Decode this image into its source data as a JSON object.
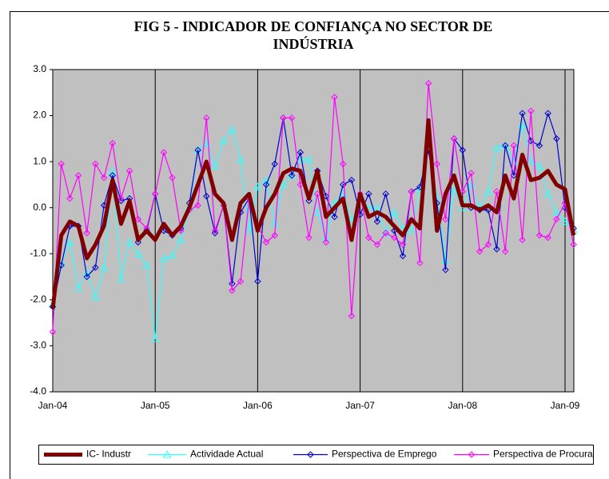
{
  "chart_data": {
    "type": "line",
    "title": "FIG 5 - INDICADOR DE CONFIANÇA NO SECTOR DE INDÚSTRIA",
    "categories": [
      "Jan-04",
      null,
      null,
      null,
      null,
      null,
      null,
      null,
      null,
      null,
      null,
      null,
      "Jan-05",
      null,
      null,
      null,
      null,
      null,
      null,
      null,
      null,
      null,
      null,
      null,
      "Jan-06",
      null,
      null,
      null,
      null,
      null,
      null,
      null,
      null,
      null,
      null,
      null,
      "Jan-07",
      null,
      null,
      null,
      null,
      null,
      null,
      null,
      null,
      null,
      null,
      null,
      "Jan-08",
      null,
      null,
      null,
      null,
      null,
      null,
      null,
      null,
      null,
      null,
      null,
      "Jan-09",
      null
    ],
    "ylim": [
      -4,
      3
    ],
    "yticks": [
      {
        "value": 3,
        "label": "3.0"
      },
      {
        "value": 2,
        "label": "2.0"
      },
      {
        "value": 1,
        "label": "1.0"
      },
      {
        "value": 0,
        "label": "0.0"
      },
      {
        "value": -1,
        "label": "-1.0"
      },
      {
        "value": -2,
        "label": "-2.0"
      },
      {
        "value": -3,
        "label": "-3.0"
      },
      {
        "value": -4,
        "label": "-4.0"
      }
    ],
    "plot_background": "#c0c0c0",
    "legend": "bottom",
    "series": [
      {
        "name": "IC- Industr",
        "color": "#800000",
        "line_width": 5,
        "marker": "none",
        "values": [
          -2.2,
          -0.6,
          -0.3,
          -0.4,
          -1.1,
          -0.8,
          -0.4,
          0.6,
          -0.35,
          0.15,
          -0.7,
          -0.5,
          -0.7,
          -0.35,
          -0.6,
          -0.4,
          0.0,
          0.5,
          1.0,
          0.3,
          0.1,
          -0.7,
          0.1,
          0.3,
          -0.5,
          0.0,
          0.3,
          0.75,
          0.85,
          0.8,
          0.2,
          0.8,
          -0.2,
          0.0,
          0.2,
          -0.7,
          0.3,
          -0.2,
          -0.1,
          -0.2,
          -0.4,
          -0.6,
          -0.25,
          -0.45,
          1.9,
          -0.5,
          0.3,
          0.7,
          0.05,
          0.05,
          -0.05,
          0.05,
          -0.1,
          0.7,
          0.2,
          1.15,
          0.6,
          0.65,
          0.8,
          0.5,
          0.4,
          -0.6
        ]
      },
      {
        "name": "Actividade Actual",
        "color": "#33ffff",
        "line_width": 1.2,
        "marker": "triangle",
        "values": [
          -2.1,
          -1.2,
          -0.75,
          -1.75,
          -1.4,
          -1.95,
          -1.3,
          0.8,
          -1.55,
          -0.75,
          -1.0,
          -1.25,
          -2.85,
          -1.1,
          -1.05,
          -0.7,
          0.0,
          1.25,
          1.4,
          0.9,
          1.45,
          1.7,
          1.05,
          -0.5,
          0.45,
          0.6,
          -0.35,
          0.5,
          0.7,
          1.05,
          1.05,
          -0.1,
          -0.65,
          0.1,
          0.3,
          -0.3,
          0.2,
          0.0,
          0.0,
          -0.55,
          -0.1,
          -0.45,
          -0.5,
          0.4,
          1.55,
          0.2,
          -1.15,
          0.4,
          0.0,
          0.5,
          0.0,
          0.35,
          1.3,
          1.35,
          1.0,
          1.8,
          1.0,
          0.9,
          0.3,
          -0.1,
          -0.3,
          -0.5
        ]
      },
      {
        "name": "Perspectiva de Emprego",
        "color": "#0000cc",
        "line_width": 1.2,
        "marker": "diamond",
        "values": [
          -2.15,
          -1.25,
          -0.4,
          -0.4,
          -1.5,
          -1.3,
          0.05,
          0.7,
          0.15,
          0.2,
          -0.75,
          -0.5,
          0.3,
          -0.5,
          -0.6,
          -0.45,
          0.1,
          1.25,
          0.25,
          -0.55,
          0.05,
          -1.65,
          -0.1,
          0.2,
          -1.6,
          0.5,
          0.95,
          1.95,
          0.7,
          1.2,
          0.15,
          0.8,
          0.25,
          -0.2,
          0.5,
          0.6,
          -0.15,
          0.3,
          -0.3,
          0.3,
          -0.5,
          -1.05,
          0.35,
          0.45,
          1.25,
          0.1,
          -1.35,
          1.5,
          1.25,
          0.0,
          -0.05,
          -0.05,
          -0.9,
          1.35,
          0.7,
          2.05,
          1.45,
          1.35,
          2.05,
          1.5,
          0.0,
          -0.45
        ]
      },
      {
        "name": "Perspectiva de Procura",
        "color": "#ff00ff",
        "line_width": 1.2,
        "marker": "diamond",
        "values": [
          -2.7,
          0.95,
          0.2,
          0.7,
          -0.55,
          0.95,
          0.65,
          1.4,
          0.2,
          0.8,
          -0.25,
          -0.45,
          0.3,
          1.2,
          0.65,
          -0.5,
          -0.05,
          0.05,
          1.95,
          -0.5,
          0.05,
          -1.8,
          -1.6,
          0.2,
          -0.4,
          -0.75,
          -0.6,
          1.95,
          1.95,
          0.5,
          -0.65,
          0.3,
          -0.75,
          2.4,
          0.95,
          -2.35,
          0.3,
          -0.65,
          -0.8,
          -0.55,
          -0.65,
          -0.8,
          0.35,
          -1.2,
          2.7,
          0.95,
          -0.25,
          1.5,
          0.35,
          0.75,
          -0.95,
          -0.8,
          0.35,
          -0.95,
          1.35,
          -0.7,
          2.1,
          -0.6,
          -0.65,
          -0.25,
          0.1,
          -0.8
        ]
      }
    ]
  }
}
